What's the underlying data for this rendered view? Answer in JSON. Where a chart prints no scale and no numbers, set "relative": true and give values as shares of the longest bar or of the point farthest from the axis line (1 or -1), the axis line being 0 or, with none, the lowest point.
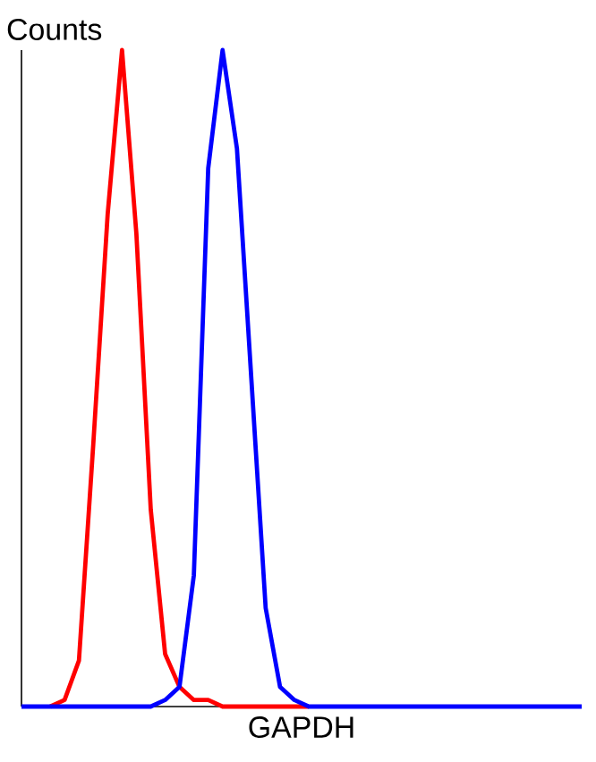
{
  "chart_data": {
    "type": "line",
    "relative": true,
    "xlabel": "GAPDH",
    "ylabel": "Counts",
    "categories": [
      null,
      null,
      null,
      null,
      null,
      null,
      null,
      null,
      null,
      null,
      null,
      null,
      null,
      null,
      null,
      null,
      null,
      null,
      null,
      null,
      null,
      null,
      null,
      null,
      null,
      null,
      null,
      null,
      null,
      null,
      null,
      null,
      null,
      null,
      null,
      null,
      null,
      null,
      null,
      null
    ],
    "series": [
      {
        "color": "#ff0000",
        "values": [
          null,
          null,
          0,
          0.01,
          0.07,
          0.4,
          0.75,
          1.0,
          0.72,
          0.3,
          0.08,
          0.03,
          0.01,
          0.01,
          0,
          0,
          0,
          0,
          0,
          0,
          0,
          null,
          null,
          null,
          null,
          null,
          null,
          null,
          null,
          null,
          null,
          null,
          null,
          null,
          null,
          null,
          null,
          null,
          null,
          null
        ]
      },
      {
        "color": "#0000ff",
        "values": [
          0,
          0,
          0,
          0,
          0,
          0,
          0,
          0,
          0,
          0,
          0.01,
          0.03,
          0.2,
          0.82,
          1.0,
          0.85,
          0.5,
          0.15,
          0.03,
          0.01,
          0,
          0,
          0,
          0,
          0,
          0,
          0,
          0,
          0,
          0,
          0,
          0,
          0,
          0,
          0,
          0,
          0,
          0,
          0,
          0
        ]
      }
    ]
  }
}
